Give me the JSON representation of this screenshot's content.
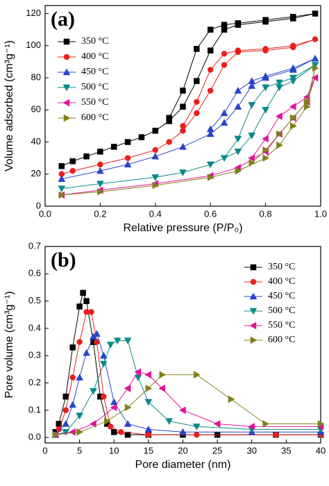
{
  "chart_data": [
    {
      "type": "line",
      "annotation": "(a)",
      "xlabel": "Relative pressure (P/P₀)",
      "ylabel": "Volume adsorbed (cm³g⁻¹)",
      "xlim": [
        0,
        1
      ],
      "xticks": [
        {
          "value": 0,
          "label": "0.0"
        },
        0.2,
        0.4,
        0.6,
        0.8,
        {
          "value": 1,
          "label": "1.0"
        }
      ],
      "ylim": [
        0,
        125
      ],
      "yticks": [
        0,
        20,
        40,
        60,
        80,
        100,
        120
      ],
      "legend": "upper left",
      "series": [
        {
          "name": "350 °C",
          "color": "#000000",
          "marker": "square",
          "x": [
            0.06,
            0.1,
            0.15,
            0.2,
            0.25,
            0.3,
            0.35,
            0.4,
            0.45,
            0.5,
            0.55,
            0.6,
            0.65,
            0.7,
            0.8,
            0.9,
            0.98,
            0.9,
            0.8,
            0.7,
            0.65,
            0.6,
            0.55,
            0.5,
            0.45
          ],
          "values": [
            25,
            28,
            31,
            34,
            37,
            40,
            43,
            47,
            53,
            62,
            78,
            97,
            110,
            113,
            115,
            117,
            120,
            118,
            116,
            114,
            113,
            110,
            98,
            72,
            55
          ]
        },
        {
          "name": "400 °C",
          "color": "#e8201c",
          "marker": "circle",
          "x": [
            0.06,
            0.1,
            0.2,
            0.3,
            0.4,
            0.45,
            0.5,
            0.55,
            0.6,
            0.65,
            0.7,
            0.8,
            0.9,
            0.98,
            0.9,
            0.8,
            0.7,
            0.65,
            0.6,
            0.55,
            0.5
          ],
          "values": [
            20,
            22,
            26,
            30,
            35,
            40,
            47,
            58,
            72,
            88,
            96,
            97,
            99,
            104,
            100,
            98,
            97,
            95,
            85,
            65,
            50
          ]
        },
        {
          "name": "450 °C",
          "color": "#2a45c8",
          "marker": "triangle-up",
          "x": [
            0.06,
            0.2,
            0.3,
            0.4,
            0.5,
            0.6,
            0.65,
            0.7,
            0.75,
            0.8,
            0.9,
            0.98,
            0.9,
            0.8,
            0.75,
            0.7,
            0.65,
            0.6
          ],
          "values": [
            17,
            22,
            26,
            31,
            37,
            45,
            52,
            62,
            75,
            80,
            85,
            92,
            86,
            81,
            78,
            72,
            58,
            48
          ]
        },
        {
          "name": "500 °C",
          "color": "#0a8a8a",
          "marker": "triangle-down",
          "x": [
            0.06,
            0.2,
            0.4,
            0.5,
            0.6,
            0.7,
            0.75,
            0.8,
            0.85,
            0.9,
            0.98,
            0.9,
            0.85,
            0.8,
            0.75,
            0.7,
            0.65
          ],
          "values": [
            11,
            14,
            18,
            21,
            26,
            34,
            44,
            60,
            74,
            78,
            88,
            80,
            77,
            74,
            63,
            42,
            30
          ]
        },
        {
          "name": "550 °C",
          "color": "#e0139b",
          "marker": "triangle-left",
          "x": [
            0.06,
            0.2,
            0.4,
            0.6,
            0.7,
            0.8,
            0.85,
            0.9,
            0.95,
            0.98,
            0.95,
            0.9,
            0.85,
            0.8,
            0.75
          ],
          "values": [
            7,
            10,
            14,
            19,
            24,
            34,
            45,
            55,
            65,
            80,
            68,
            62,
            56,
            42,
            30
          ]
        },
        {
          "name": "600 °C",
          "color": "#808018",
          "marker": "triangle-right",
          "x": [
            0.06,
            0.2,
            0.4,
            0.6,
            0.7,
            0.8,
            0.85,
            0.9,
            0.95,
            0.98,
            0.95,
            0.9,
            0.85,
            0.8,
            0.75
          ],
          "values": [
            7,
            9,
            13,
            18,
            22,
            30,
            38,
            50,
            62,
            86,
            65,
            55,
            45,
            35,
            27
          ]
        }
      ]
    },
    {
      "type": "line",
      "annotation": "(b)",
      "xlabel": "Pore diameter (nm)",
      "ylabel": "Pore volume (cm³g⁻¹)",
      "xlim": [
        0,
        40
      ],
      "xticks": [
        0,
        5,
        10,
        15,
        20,
        25,
        30,
        35,
        40
      ],
      "ylim": [
        -0.02,
        0.7
      ],
      "yticks": [
        {
          "value": 0,
          "label": "0.0"
        },
        0.1,
        0.2,
        0.3,
        0.4,
        0.5,
        0.6,
        0.7
      ],
      "legend": "upper right",
      "series": [
        {
          "name": "350 °C",
          "color": "#000000",
          "marker": "square",
          "x": [
            1.5,
            2,
            3,
            4,
            5,
            5.5,
            6,
            7,
            8,
            9,
            10,
            12,
            15,
            20,
            25,
            33.5,
            40
          ],
          "values": [
            0.02,
            0.05,
            0.15,
            0.33,
            0.48,
            0.53,
            0.5,
            0.35,
            0.15,
            0.05,
            0.02,
            0.01,
            0.01,
            0.01,
            0.01,
            0.01,
            0.01
          ]
        },
        {
          "name": "400 °C",
          "color": "#e8201c",
          "marker": "circle",
          "x": [
            1.5,
            2,
            3,
            4,
            5,
            6,
            6.7,
            7.5,
            8.5,
            9.5,
            11,
            15,
            22,
            33.5,
            40
          ],
          "values": [
            0.01,
            0.03,
            0.1,
            0.22,
            0.35,
            0.46,
            0.46,
            0.35,
            0.15,
            0.04,
            0.02,
            0.01,
            0.01,
            0.01,
            0.01
          ]
        },
        {
          "name": "450 °C",
          "color": "#2a45c8",
          "marker": "triangle-up",
          "x": [
            1.5,
            3,
            4,
            5,
            6,
            7,
            7.5,
            8.5,
            10,
            12,
            15,
            20,
            30,
            40
          ],
          "values": [
            0.01,
            0.05,
            0.12,
            0.22,
            0.31,
            0.37,
            0.38,
            0.3,
            0.13,
            0.05,
            0.03,
            0.02,
            0.02,
            0.02
          ]
        },
        {
          "name": "500 °C",
          "color": "#0a8a8a",
          "marker": "triangle-down",
          "x": [
            1.5,
            3,
            5,
            7,
            8.5,
            9.5,
            10.5,
            12,
            13.5,
            15,
            18,
            22,
            30,
            40
          ],
          "values": [
            0.01,
            0.02,
            0.08,
            0.17,
            0.27,
            0.34,
            0.355,
            0.355,
            0.22,
            0.13,
            0.06,
            0.04,
            0.03,
            0.03
          ]
        },
        {
          "name": "550 °C",
          "color": "#e0139b",
          "marker": "triangle-left",
          "x": [
            1.5,
            4,
            7,
            10,
            12,
            13.5,
            15,
            17,
            20,
            25,
            30,
            40
          ],
          "values": [
            0.01,
            0.02,
            0.05,
            0.11,
            0.18,
            0.24,
            0.23,
            0.18,
            0.1,
            0.05,
            0.04,
            0.04
          ]
        },
        {
          "name": "600 °C",
          "color": "#808018",
          "marker": "triangle-right",
          "x": [
            1.5,
            5,
            9,
            12,
            15,
            17,
            22,
            27,
            32,
            40
          ],
          "values": [
            0.01,
            0.02,
            0.06,
            0.11,
            0.18,
            0.23,
            0.23,
            0.14,
            0.05,
            0.05
          ]
        }
      ]
    }
  ]
}
